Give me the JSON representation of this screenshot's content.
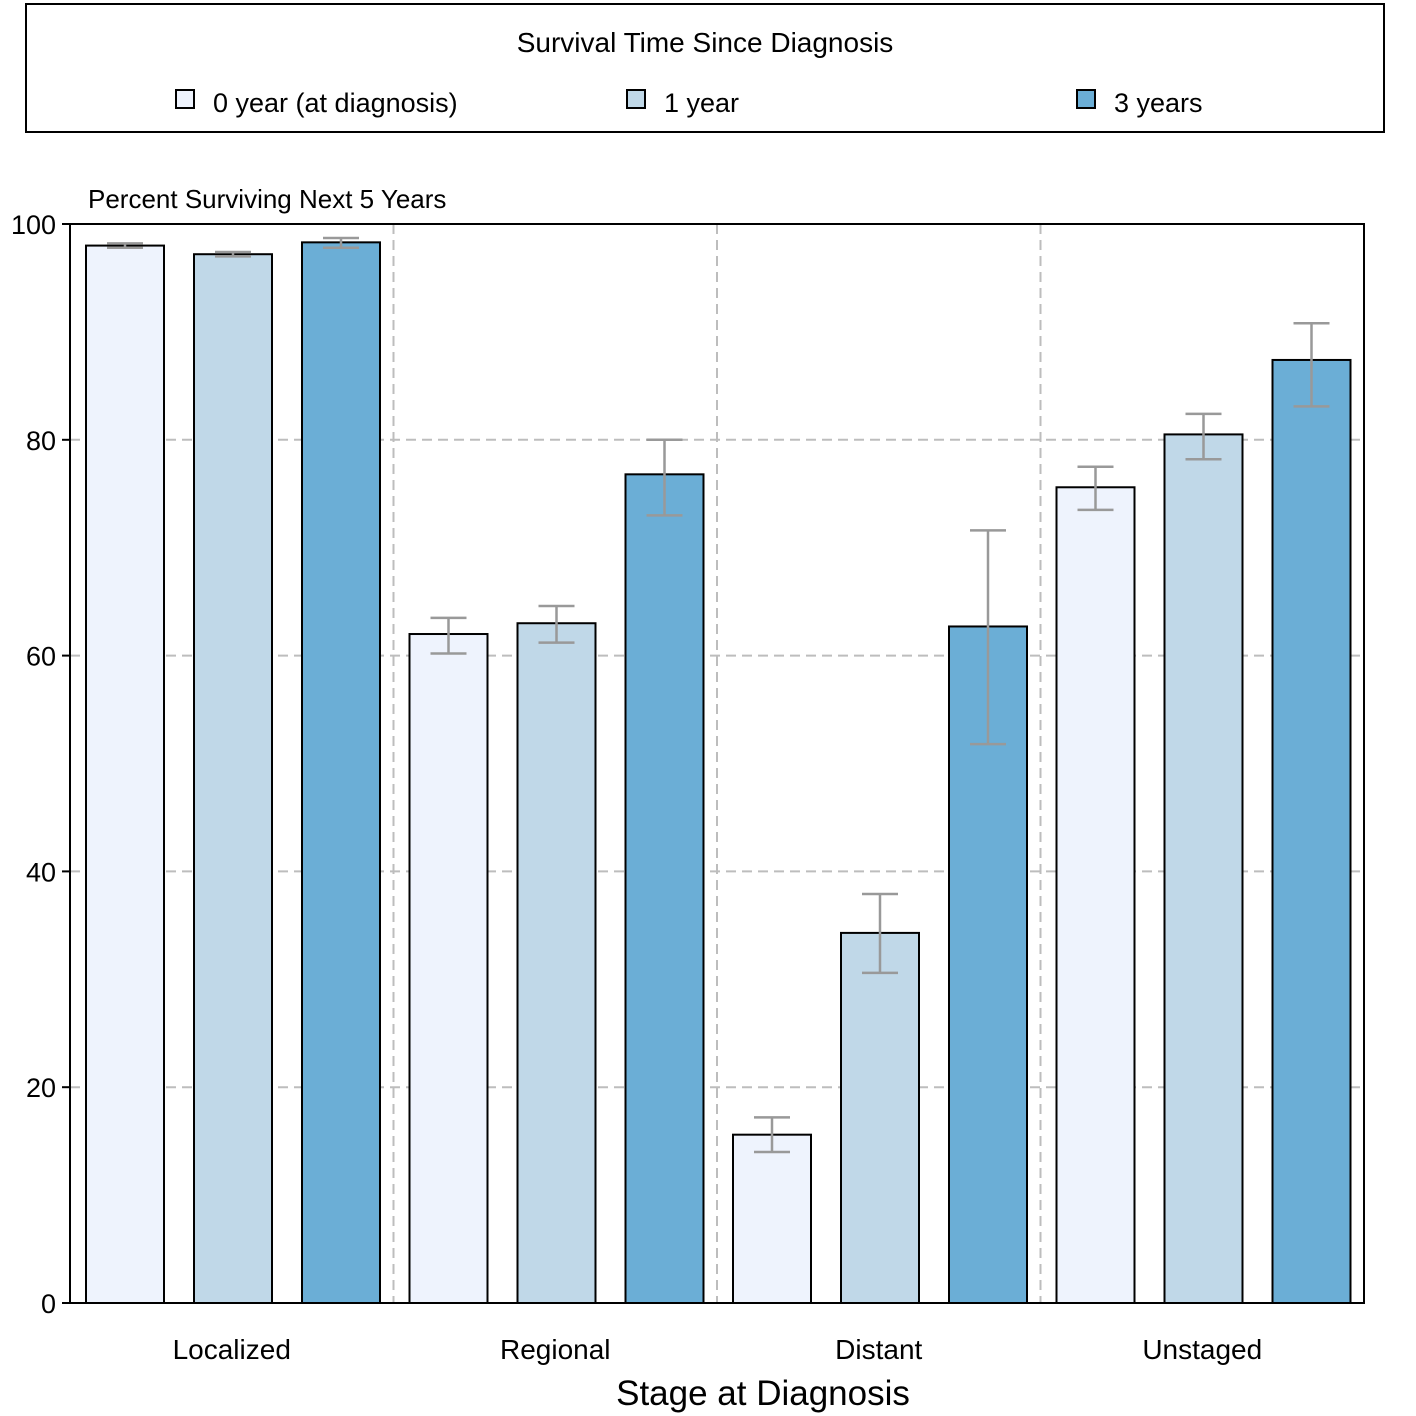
{
  "colors": {
    "series": [
      "#eef3fd",
      "#c0d8e8",
      "#6baed6"
    ],
    "errorbar": "#999999",
    "grid": "#bdbdbd",
    "axis": "#000000"
  },
  "chart_data": {
    "type": "bar",
    "legend": {
      "title": "Survival Time Since Diagnosis",
      "placement": "top"
    },
    "y_title": "Percent Surviving Next 5 Years",
    "xlabel": "Stage at Diagnosis",
    "ylim": [
      0,
      100
    ],
    "yticks": [
      "0",
      "20",
      "40",
      "60",
      "80",
      "100"
    ],
    "categories": [
      "Localized",
      "Regional",
      "Distant",
      "Unstaged"
    ],
    "series": [
      {
        "name": "0 year (at diagnosis)",
        "values": [
          98.0,
          62.0,
          15.6,
          75.6
        ],
        "lower": [
          97.8,
          60.2,
          14.0,
          73.5
        ],
        "upper": [
          98.2,
          63.5,
          17.2,
          77.5
        ]
      },
      {
        "name": "1 year",
        "values": [
          97.2,
          63.0,
          34.3,
          80.5
        ],
        "lower": [
          97.0,
          61.2,
          30.6,
          78.2
        ],
        "upper": [
          97.4,
          64.6,
          37.9,
          82.4
        ]
      },
      {
        "name": "3 years",
        "values": [
          98.3,
          76.8,
          62.7,
          87.4
        ],
        "lower": [
          97.8,
          73.0,
          51.8,
          83.1
        ],
        "upper": [
          98.7,
          80.0,
          71.6,
          90.8
        ]
      }
    ],
    "grid": true
  }
}
